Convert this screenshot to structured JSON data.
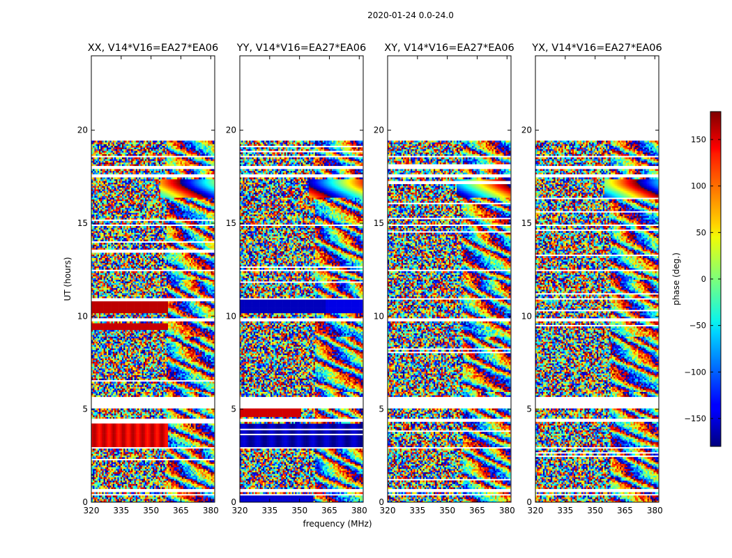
{
  "chart_data": {
    "type": "heatmap",
    "suptitle": "2020-01-24 0.0-24.0",
    "xlabel": "frequency (MHz)",
    "ylabel": "UT (hours)",
    "xlim": [
      320,
      382
    ],
    "ylim": [
      0,
      24
    ],
    "xticks": [
      320,
      335,
      350,
      365,
      380
    ],
    "yticks": [
      0,
      5,
      10,
      15,
      20
    ],
    "panels": [
      {
        "title": "XX, V14*V16=EA27*EA06",
        "variant": "xx"
      },
      {
        "title": "YY, V14*V16=EA27*EA06",
        "variant": "yy"
      },
      {
        "title": "XY, V14*V16=EA27*EA06",
        "variant": "xy"
      },
      {
        "title": "YX, V14*V16=EA27*EA06",
        "variant": "yx"
      }
    ],
    "data_extent_hours": [
      0,
      19.5
    ],
    "colorbar": {
      "label": "phase (deg.)",
      "range": [
        -180,
        180
      ],
      "ticks": [
        -150,
        -100,
        -50,
        0,
        50,
        100,
        150
      ],
      "colormap": "jet"
    }
  }
}
